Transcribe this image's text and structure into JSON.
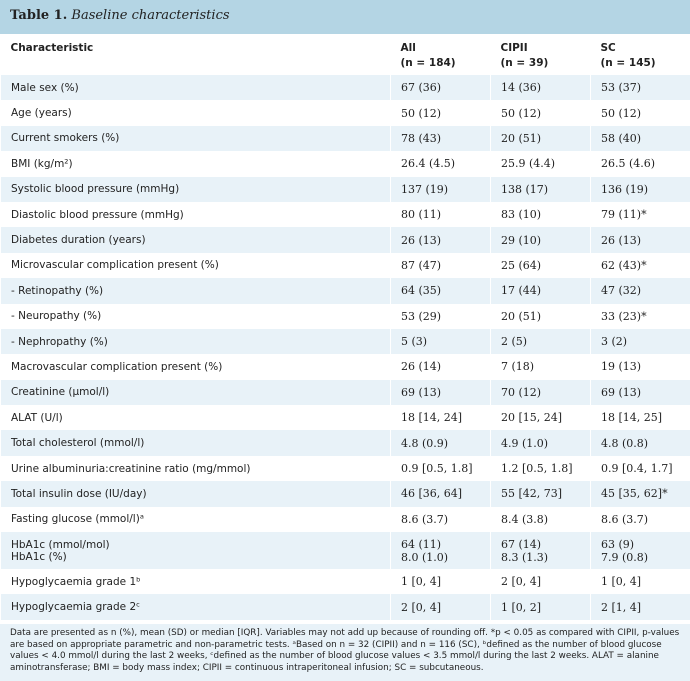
{
  "title": {
    "number": "Table 1.",
    "name": "Baseline characteristics"
  },
  "header": [
    {
      "line1": "Characteristic",
      "line2": ""
    },
    {
      "line1": "All",
      "line2": "(n = 184)"
    },
    {
      "line1": "CIPII",
      "line2": "(n = 39)"
    },
    {
      "line1": "SC",
      "line2": "(n = 145)"
    }
  ],
  "rows": [
    {
      "label": "Male sex (%)",
      "all": "67 (36)",
      "cipii": "14 (36)",
      "sc": "53 (37)"
    },
    {
      "label": "Age (years)",
      "all": "50 (12)",
      "cipii": "50 (12)",
      "sc": "50 (12)"
    },
    {
      "label": "Current smokers (%)",
      "all": "78 (43)",
      "cipii": "20 (51)",
      "sc": "58 (40)"
    },
    {
      "label": "BMI (kg/m²)",
      "all": "26.4 (4.5)",
      "cipii": "25.9 (4.4)",
      "sc": "26.5 (4.6)"
    },
    {
      "label": "Systolic blood pressure (mmHg)",
      "all": "137 (19)",
      "cipii": "138 (17)",
      "sc": "136 (19)"
    },
    {
      "label": "Diastolic blood pressure (mmHg)",
      "all": "80 (11)",
      "cipii": "83 (10)",
      "sc": "79 (11)*"
    },
    {
      "label": "Diabetes duration (years)",
      "all": "26 (13)",
      "cipii": "29 (10)",
      "sc": "26 (13)"
    },
    {
      "label": "Microvascular complication present (%)",
      "all": "87 (47)",
      "cipii": "25 (64)",
      "sc": "62 (43)*"
    },
    {
      "label": "- Retinopathy (%)",
      "all": "64 (35)",
      "cipii": "17 (44)",
      "sc": "47 (32)"
    },
    {
      "label": "- Neuropathy (%)",
      "all": "53 (29)",
      "cipii": "20 (51)",
      "sc": "33 (23)*"
    },
    {
      "label": "- Nephropathy (%)",
      "all": "5 (3)",
      "cipii": "2 (5)",
      "sc": "3 (2)"
    },
    {
      "label": "Macrovascular complication present (%)",
      "all": "26 (14)",
      "cipii": "7 (18)",
      "sc": "19 (13)"
    },
    {
      "label": "Creatinine (µmol/l)",
      "all": "69 (13)",
      "cipii": "70 (12)",
      "sc": "69 (13)"
    },
    {
      "label": "ALAT (U/l)",
      "all": "18 [14, 24]",
      "cipii": "20 [15, 24]",
      "sc": "18 [14, 25]"
    },
    {
      "label": "Total cholesterol (mmol/l)",
      "all": "4.8 (0.9)",
      "cipii": "4.9 (1.0)",
      "sc": "4.8 (0.8)"
    },
    {
      "label": "Urine albuminuria:creatinine ratio (mg/mmol)",
      "all": "0.9 [0.5, 1.8]",
      "cipii": "1.2 [0.5, 1.8]",
      "sc": "0.9 [0.4, 1.7]"
    },
    {
      "label": "Total insulin dose (IU/day)",
      "all": "46 [36, 64]",
      "cipii": "55 [42, 73]",
      "sc": "45 [35, 62]*"
    },
    {
      "label": "Fasting glucose (mmol/l)ᵃ",
      "all": "8.6 (3.7)",
      "cipii": "8.4 (3.8)",
      "sc": "8.6 (3.7)"
    },
    {
      "label": "HbA1c (mmol/mol)",
      "label2": "HbA1c (%)",
      "all": "64 (11)",
      "all2": "8.0 (1.0)",
      "cipii": "67 (14)",
      "cipii2": "8.3 (1.3)",
      "sc": "63 (9)",
      "sc2": "7.9 (0.8)"
    },
    {
      "label": "Hypoglycaemia grade 1ᵇ",
      "all": "1 [0, 4]",
      "cipii": "2 [0, 4]",
      "sc": "1 [0, 4]"
    },
    {
      "label": "Hypoglycaemia grade 2ᶜ",
      "all": "2 [0, 4]",
      "cipii": "1 [0, 2]",
      "sc": "2 [1, 4]"
    }
  ],
  "footnote": "Data are presented as n (%), mean (SD) or median [IQR]. Variables may not add up because of rounding off. *p < 0.05 as compared with CIPII, p-values are based on appropriate parametric and non-parametric tests. ᵃBased on n = 32 (CIPII) and n = 116 (SC), ᵇdefined as the number of blood glucose values < 4.0 mmol/l during the last 2 weeks, ᶜdefined as the number of blood glucose values < 3.5 mmol/l during the last 2 weeks. ALAT = alanine aminotransferase; BMI = body mass index; CIPII = continuous intraperitoneal infusion; SC = subcutaneous."
}
